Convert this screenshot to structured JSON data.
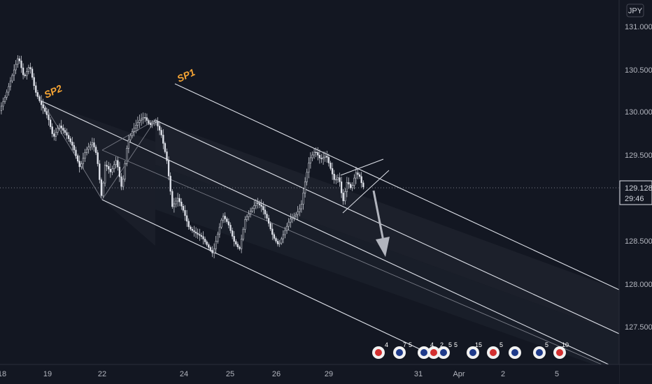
{
  "currency": "JPY",
  "last_price": "129.128",
  "countdown": "29:46",
  "chart_data": {
    "type": "candlestick",
    "title": "",
    "y_unit": "JPY",
    "ylim": [
      127.15,
      131.3
    ],
    "y_ticks": [
      "131.000",
      "130.500",
      "130.000",
      "129.500",
      "128.500",
      "128.000",
      "127.500"
    ],
    "x_ticks": [
      "18",
      "19",
      "22",
      "24",
      "25",
      "26",
      "29",
      "31",
      "Apr",
      "2",
      "5"
    ],
    "grid": false,
    "annotations": [
      {
        "label": "SP1",
        "kind": "channel-label"
      },
      {
        "label": "SP2",
        "kind": "channel-label"
      }
    ],
    "price_path": [
      [
        0,
        130.0
      ],
      [
        10,
        130.2
      ],
      [
        20,
        130.45
      ],
      [
        28,
        130.65
      ],
      [
        36,
        130.4
      ],
      [
        44,
        130.55
      ],
      [
        52,
        130.25
      ],
      [
        60,
        130.1
      ],
      [
        70,
        129.95
      ],
      [
        78,
        129.7
      ],
      [
        86,
        129.85
      ],
      [
        96,
        129.75
      ],
      [
        106,
        129.6
      ],
      [
        116,
        129.35
      ],
      [
        124,
        129.55
      ],
      [
        134,
        129.65
      ],
      [
        140,
        129.5
      ],
      [
        147,
        129.0
      ],
      [
        152,
        129.4
      ],
      [
        160,
        129.3
      ],
      [
        168,
        129.45
      ],
      [
        176,
        129.1
      ],
      [
        184,
        129.65
      ],
      [
        192,
        129.8
      ],
      [
        200,
        129.9
      ],
      [
        208,
        129.95
      ],
      [
        216,
        129.85
      ],
      [
        224,
        129.9
      ],
      [
        232,
        129.75
      ],
      [
        240,
        129.45
      ],
      [
        248,
        128.9
      ],
      [
        256,
        129.0
      ],
      [
        264,
        128.85
      ],
      [
        272,
        128.65
      ],
      [
        280,
        128.6
      ],
      [
        290,
        128.55
      ],
      [
        298,
        128.45
      ],
      [
        306,
        128.35
      ],
      [
        312,
        128.55
      ],
      [
        320,
        128.8
      ],
      [
        328,
        128.7
      ],
      [
        336,
        128.5
      ],
      [
        344,
        128.4
      ],
      [
        352,
        128.75
      ],
      [
        360,
        128.85
      ],
      [
        368,
        128.95
      ],
      [
        376,
        128.9
      ],
      [
        384,
        128.75
      ],
      [
        392,
        128.55
      ],
      [
        400,
        128.45
      ],
      [
        408,
        128.6
      ],
      [
        416,
        128.75
      ],
      [
        424,
        128.8
      ],
      [
        432,
        128.9
      ],
      [
        438,
        129.2
      ],
      [
        444,
        129.45
      ],
      [
        452,
        129.55
      ],
      [
        460,
        129.45
      ],
      [
        468,
        129.5
      ],
      [
        474,
        129.35
      ],
      [
        480,
        129.2
      ],
      [
        486,
        129.25
      ],
      [
        492,
        128.95
      ],
      [
        498,
        129.2
      ],
      [
        504,
        129.1
      ],
      [
        510,
        129.3
      ],
      [
        516,
        129.25
      ],
      [
        520,
        129.13
      ]
    ],
    "event_markers": [
      "4",
      "7",
      "5",
      "4",
      "2",
      "5",
      "5",
      "15",
      "5",
      "5",
      "10"
    ]
  },
  "ui_labels": {
    "arrow_hint": "down"
  }
}
